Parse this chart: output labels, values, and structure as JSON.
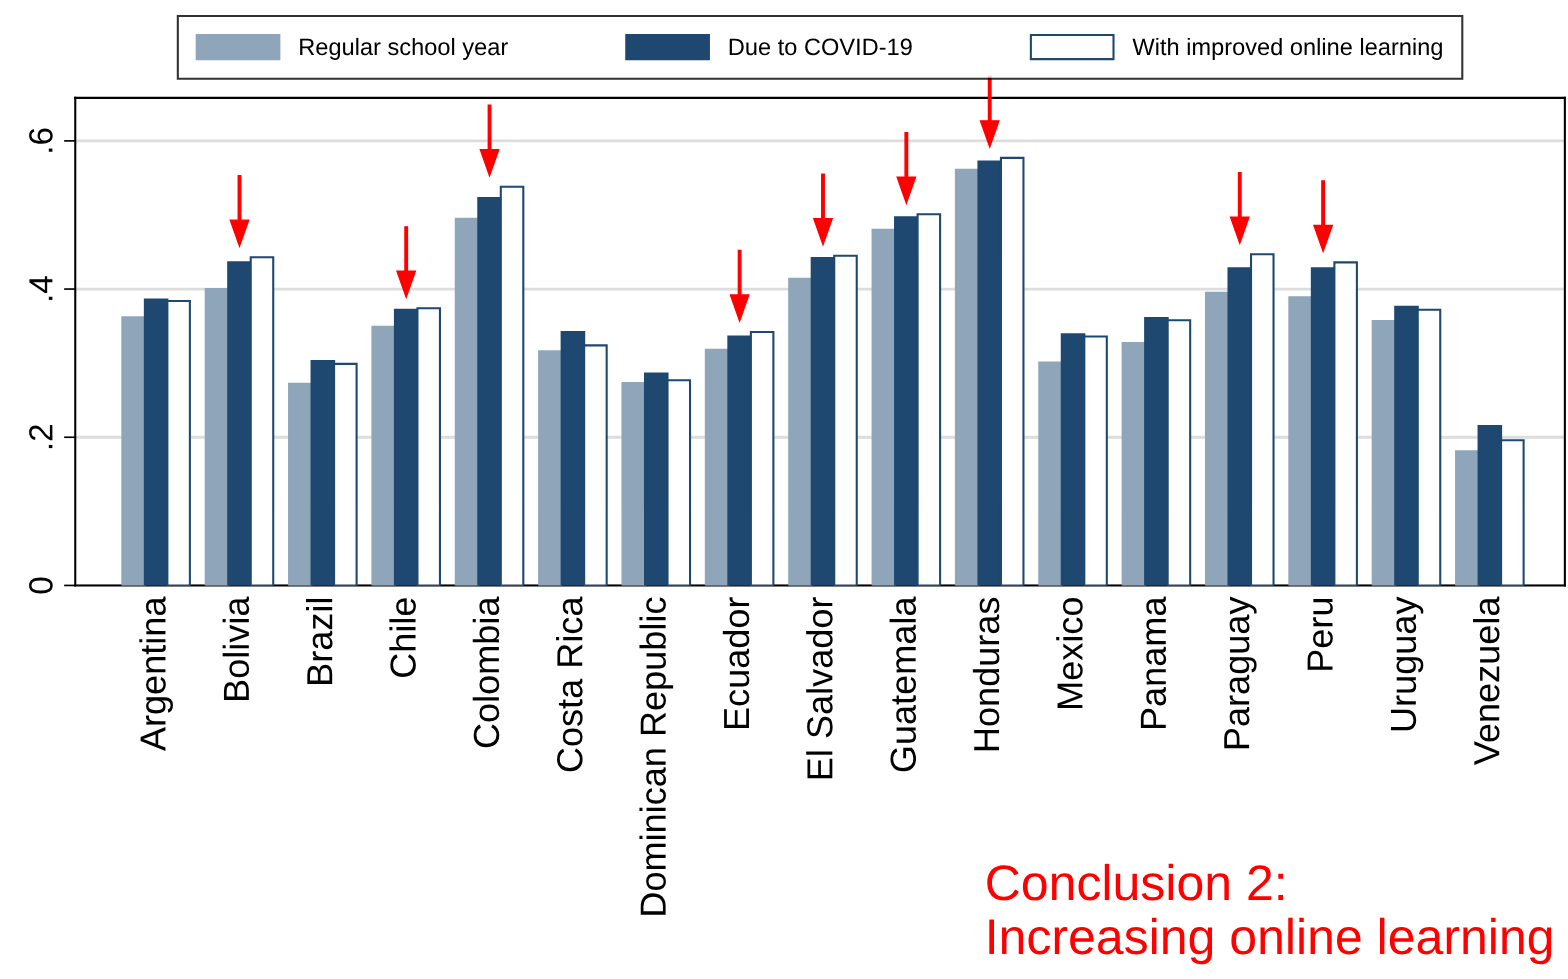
{
  "chart_data": {
    "type": "bar",
    "categories": [
      "Argentina",
      "Bolivia",
      "Brazil",
      "Chile",
      "Colombia",
      "Costa Rica",
      "Dominican Republic",
      "Ecuador",
      "El Salvador",
      "Guatemala",
      "Honduras",
      "Mexico",
      "Panama",
      "Paraguay",
      "Peru",
      "Uruguay",
      "Venezuela"
    ],
    "series": [
      {
        "name": "Regular school year",
        "color": "#8fa5ba",
        "values": [
          0.362,
          0.4,
          0.272,
          0.349,
          0.495,
          0.316,
          0.273,
          0.318,
          0.414,
          0.48,
          0.561,
          0.301,
          0.327,
          0.395,
          0.389,
          0.357,
          0.181
        ]
      },
      {
        "name": "Due to COVID-19",
        "color": "#1e4870",
        "values": [
          0.386,
          0.436,
          0.303,
          0.372,
          0.523,
          0.342,
          0.286,
          0.336,
          0.442,
          0.497,
          0.572,
          0.339,
          0.361,
          0.428,
          0.428,
          0.376,
          0.215
        ]
      },
      {
        "name": "With improved online learning",
        "color": "#ffffff",
        "values": [
          0.384,
          0.443,
          0.299,
          0.374,
          0.538,
          0.324,
          0.277,
          0.342,
          0.445,
          0.501,
          0.577,
          0.336,
          0.358,
          0.447,
          0.436,
          0.372,
          0.196
        ]
      }
    ],
    "ylim": [
      0,
      0.658
    ],
    "yticks": [
      {
        "value": 0,
        "label": "0"
      },
      {
        "value": 0.2,
        "label": ".2"
      },
      {
        "value": 0.4,
        "label": ".4"
      },
      {
        "value": 0.6,
        "label": ".6"
      }
    ],
    "grid": "y",
    "legend": "top",
    "annotations": [
      "Conclusion 2:\nIncreasing online learning"
    ]
  }
}
